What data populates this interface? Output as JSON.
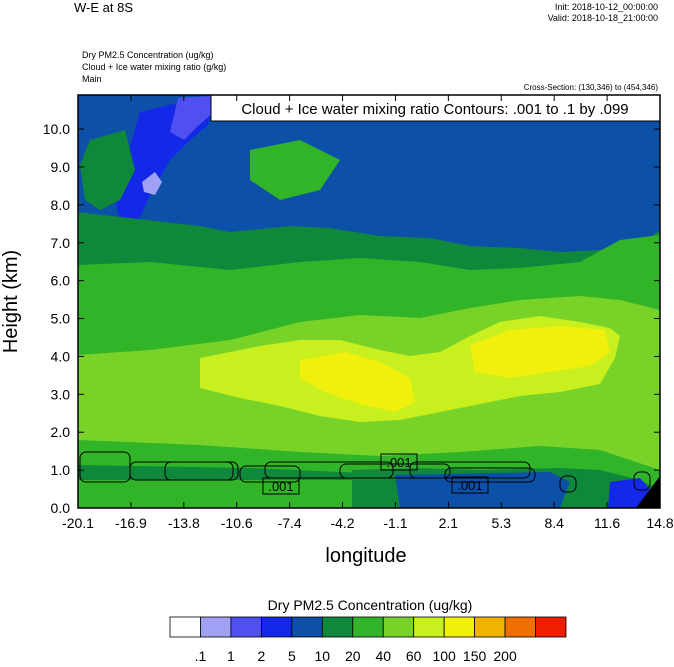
{
  "header": {
    "title": "W-E at 8S",
    "init": "Init: 2018-10-12_00:00:00",
    "valid": "Valid: 2018-10-18_21:00:00",
    "variables": [
      "Dry PM2.5 Concentration   (ug/kg)",
      "Cloud + Ice water mixing ratio   (g/kg)",
      "Main"
    ],
    "cross_section": "Cross-Section: (130,346) to (454,346)"
  },
  "chart_data": {
    "type": "heatmap",
    "title": "W-E at 8S",
    "xlabel": "longitude",
    "ylabel": "Height (km)",
    "x_ticks": [
      "-20.1",
      "-16.9",
      "-13.8",
      "-10.6",
      "-7.4",
      "-4.2",
      "-1.1",
      "2.1",
      "5.3",
      "8.4",
      "11.6",
      "14.8"
    ],
    "y_ticks": [
      "0.0",
      "1.0",
      "2.0",
      "3.0",
      "4.0",
      "5.0",
      "6.0",
      "7.0",
      "8.0",
      "9.0",
      "10.0"
    ],
    "xlim": [
      -20.1,
      14.8
    ],
    "ylim": [
      0.0,
      10.9
    ],
    "contour_title": "Cloud + Ice water mixing ratio Contours: .001 to .1 by .099",
    "contour_labels": [
      ".001",
      ".001",
      ".001"
    ],
    "colorbar": {
      "label": "Dry PM2.5 Concentration  (ug/kg)",
      "levels": [
        ".1",
        "1",
        "2",
        "5",
        "10",
        "20",
        "40",
        "60",
        "100",
        "150",
        "200"
      ],
      "colors": [
        "#ffffff",
        "#a0a0f5",
        "#5050f0",
        "#1428e8",
        "#0c50a8",
        "#10883c",
        "#32b428",
        "#78d228",
        "#c8f01e",
        "#f0f00c",
        "#f0b400",
        "#f06e00",
        "#f01e00"
      ]
    }
  }
}
